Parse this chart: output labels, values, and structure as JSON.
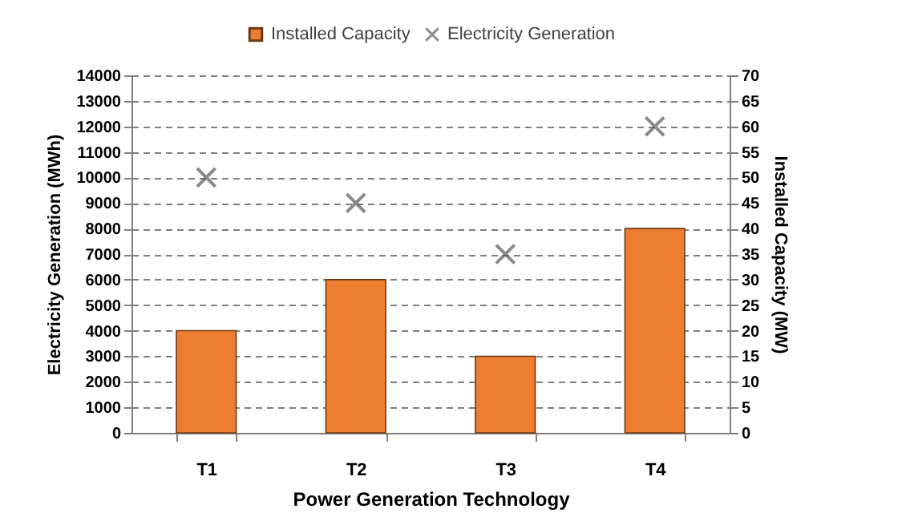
{
  "chart_data": {
    "type": "bar",
    "xlabel": "Power Generation Technology",
    "ylabel": "Electricity Generation (MWh)",
    "y2label": "Installed Capacity (MW)",
    "categories": [
      "T1",
      "T2",
      "T3",
      "T4"
    ],
    "series": [
      {
        "name": "Installed Capacity",
        "axis": "y2",
        "color": "#ed7d31",
        "values": [
          20,
          30,
          15,
          40
        ]
      },
      {
        "name": "Electricity Generation",
        "type": "scatter",
        "color": "#595959",
        "values": [
          10000,
          9000,
          7000,
          12000
        ]
      }
    ],
    "ylim": [
      0,
      14000
    ],
    "yticks": [
      0,
      1000,
      2000,
      3000,
      4000,
      5000,
      6000,
      7000,
      8000,
      9000,
      10000,
      11000,
      12000,
      13000,
      14000
    ],
    "y2lim": [
      0,
      70
    ],
    "y2ticks": [
      0,
      5,
      10,
      15,
      20,
      25,
      30,
      35,
      40,
      45,
      50,
      55,
      60,
      65,
      70
    ],
    "grid": "y",
    "legend": "top",
    "marker": "cross"
  }
}
